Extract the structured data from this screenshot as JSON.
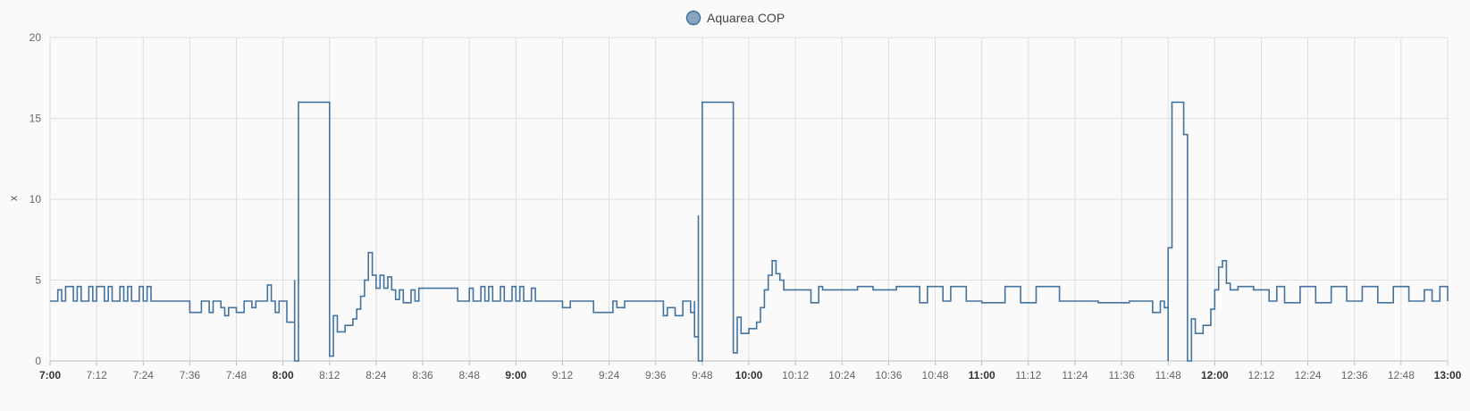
{
  "chart_data": {
    "type": "line",
    "ylabel": "x",
    "ylim": [
      0,
      20
    ],
    "y_ticks": [
      0,
      5,
      10,
      15,
      20
    ],
    "x_range": [
      "7:00",
      "13:00"
    ],
    "x_ticks": [
      {
        "label": "7:00",
        "major": true
      },
      {
        "label": "7:12",
        "major": false
      },
      {
        "label": "7:24",
        "major": false
      },
      {
        "label": "7:36",
        "major": false
      },
      {
        "label": "7:48",
        "major": false
      },
      {
        "label": "8:00",
        "major": true
      },
      {
        "label": "8:12",
        "major": false
      },
      {
        "label": "8:24",
        "major": false
      },
      {
        "label": "8:36",
        "major": false
      },
      {
        "label": "8:48",
        "major": false
      },
      {
        "label": "9:00",
        "major": true
      },
      {
        "label": "9:12",
        "major": false
      },
      {
        "label": "9:24",
        "major": false
      },
      {
        "label": "9:36",
        "major": false
      },
      {
        "label": "9:48",
        "major": false
      },
      {
        "label": "10:00",
        "major": true
      },
      {
        "label": "10:12",
        "major": false
      },
      {
        "label": "10:24",
        "major": false
      },
      {
        "label": "10:36",
        "major": false
      },
      {
        "label": "10:48",
        "major": false
      },
      {
        "label": "11:00",
        "major": true
      },
      {
        "label": "11:12",
        "major": false
      },
      {
        "label": "11:24",
        "major": false
      },
      {
        "label": "11:36",
        "major": false
      },
      {
        "label": "11:48",
        "major": true
      },
      {
        "label": "12:00",
        "major": true
      },
      {
        "label": "12:12",
        "major": false
      },
      {
        "label": "12:24",
        "major": false
      },
      {
        "label": "12:36",
        "major": false
      },
      {
        "label": "12:48",
        "major": false
      },
      {
        "label": "13:00",
        "major": true
      }
    ],
    "grid": true,
    "legend_position": "top-center",
    "series": [
      {
        "name": "Aquarea COP",
        "color": "#44739e",
        "step": true,
        "points": [
          [
            "7:00",
            3.7
          ],
          [
            "7:02",
            4.4
          ],
          [
            "7:03",
            3.7
          ],
          [
            "7:04",
            4.6
          ],
          [
            "7:06",
            3.7
          ],
          [
            "7:07",
            4.6
          ],
          [
            "7:08",
            3.7
          ],
          [
            "7:10",
            4.6
          ],
          [
            "7:11",
            3.7
          ],
          [
            "7:12",
            4.6
          ],
          [
            "7:14",
            3.7
          ],
          [
            "7:15",
            4.6
          ],
          [
            "7:16",
            3.7
          ],
          [
            "7:18",
            4.6
          ],
          [
            "7:19",
            3.7
          ],
          [
            "7:20",
            4.6
          ],
          [
            "7:21",
            3.7
          ],
          [
            "7:23",
            4.6
          ],
          [
            "7:24",
            3.7
          ],
          [
            "7:25",
            4.6
          ],
          [
            "7:26",
            3.7
          ],
          [
            "7:36",
            3.0
          ],
          [
            "7:39",
            3.7
          ],
          [
            "7:41",
            3.0
          ],
          [
            "7:42",
            3.7
          ],
          [
            "7:44",
            3.3
          ],
          [
            "7:45",
            2.8
          ],
          [
            "7:46",
            3.3
          ],
          [
            "7:48",
            3.0
          ],
          [
            "7:50",
            3.7
          ],
          [
            "7:52",
            3.3
          ],
          [
            "7:53",
            3.7
          ],
          [
            "7:56",
            4.7
          ],
          [
            "7:57",
            3.7
          ],
          [
            "7:58",
            3.0
          ],
          [
            "7:59",
            3.7
          ],
          [
            "8:01",
            2.4
          ],
          [
            "8:03",
            5.0
          ],
          [
            "8:03",
            0.0
          ],
          [
            "8:04",
            10.0
          ],
          [
            "8:04",
            16.0
          ],
          [
            "8:12",
            16.0
          ],
          [
            "8:12",
            0.3
          ],
          [
            "8:13",
            2.8
          ],
          [
            "8:14",
            1.8
          ],
          [
            "8:16",
            2.2
          ],
          [
            "8:18",
            2.6
          ],
          [
            "8:19",
            3.2
          ],
          [
            "8:20",
            4.0
          ],
          [
            "8:21",
            5.0
          ],
          [
            "8:22",
            6.7
          ],
          [
            "8:23",
            5.3
          ],
          [
            "8:24",
            4.5
          ],
          [
            "8:25",
            5.3
          ],
          [
            "8:26",
            4.5
          ],
          [
            "8:27",
            5.2
          ],
          [
            "8:28",
            4.4
          ],
          [
            "8:29",
            3.8
          ],
          [
            "8:30",
            4.4
          ],
          [
            "8:31",
            3.6
          ],
          [
            "8:33",
            4.4
          ],
          [
            "8:34",
            3.7
          ],
          [
            "8:35",
            4.5
          ],
          [
            "8:45",
            3.7
          ],
          [
            "8:48",
            4.5
          ],
          [
            "8:49",
            3.7
          ],
          [
            "8:51",
            4.6
          ],
          [
            "8:52",
            3.7
          ],
          [
            "8:53",
            4.6
          ],
          [
            "8:54",
            3.7
          ],
          [
            "8:56",
            4.6
          ],
          [
            "8:57",
            3.7
          ],
          [
            "8:59",
            4.6
          ],
          [
            "9:00",
            3.7
          ],
          [
            "9:01",
            4.6
          ],
          [
            "9:02",
            3.7
          ],
          [
            "9:04",
            4.5
          ],
          [
            "9:05",
            3.7
          ],
          [
            "9:12",
            3.3
          ],
          [
            "9:14",
            3.7
          ],
          [
            "9:20",
            3.0
          ],
          [
            "9:25",
            3.7
          ],
          [
            "9:26",
            3.3
          ],
          [
            "9:28",
            3.7
          ],
          [
            "9:38",
            2.8
          ],
          [
            "9:39",
            3.3
          ],
          [
            "9:41",
            2.8
          ],
          [
            "9:43",
            3.7
          ],
          [
            "9:45",
            3.0
          ],
          [
            "9:46",
            3.7
          ],
          [
            "9:46",
            1.5
          ],
          [
            "9:47",
            3.3
          ],
          [
            "9:47",
            9.0
          ],
          [
            "9:47",
            0.0
          ],
          [
            "9:48",
            9.5
          ],
          [
            "9:48",
            16.0
          ],
          [
            "9:56",
            16.0
          ],
          [
            "9:56",
            0.5
          ],
          [
            "9:57",
            2.7
          ],
          [
            "9:58",
            1.7
          ],
          [
            "10:00",
            2.0
          ],
          [
            "10:02",
            2.4
          ],
          [
            "10:03",
            3.3
          ],
          [
            "10:04",
            4.4
          ],
          [
            "10:05",
            5.3
          ],
          [
            "10:06",
            6.2
          ],
          [
            "10:07",
            5.4
          ],
          [
            "10:08",
            5.0
          ],
          [
            "10:09",
            4.4
          ],
          [
            "10:16",
            3.6
          ],
          [
            "10:18",
            4.6
          ],
          [
            "10:19",
            4.4
          ],
          [
            "10:28",
            4.6
          ],
          [
            "10:32",
            4.4
          ],
          [
            "10:38",
            4.6
          ],
          [
            "10:44",
            3.6
          ],
          [
            "10:46",
            4.6
          ],
          [
            "10:50",
            3.7
          ],
          [
            "10:52",
            4.6
          ],
          [
            "10:56",
            3.7
          ],
          [
            "11:00",
            3.6
          ],
          [
            "11:06",
            4.6
          ],
          [
            "11:10",
            3.6
          ],
          [
            "11:14",
            4.6
          ],
          [
            "11:20",
            3.7
          ],
          [
            "11:30",
            3.6
          ],
          [
            "11:38",
            3.7
          ],
          [
            "11:44",
            3.0
          ],
          [
            "11:46",
            3.7
          ],
          [
            "11:47",
            3.3
          ],
          [
            "11:48",
            0.0
          ],
          [
            "11:48",
            7.0
          ],
          [
            "11:49",
            12.0
          ],
          [
            "11:49",
            16.0
          ],
          [
            "11:52",
            16.0
          ],
          [
            "11:52",
            14.0
          ],
          [
            "11:53",
            9.0
          ],
          [
            "11:53",
            0.0
          ],
          [
            "11:54",
            2.6
          ],
          [
            "11:55",
            1.7
          ],
          [
            "11:57",
            2.2
          ],
          [
            "11:59",
            3.2
          ],
          [
            "12:00",
            4.4
          ],
          [
            "12:01",
            5.8
          ],
          [
            "12:02",
            6.2
          ],
          [
            "12:03",
            4.8
          ],
          [
            "12:04",
            4.4
          ],
          [
            "12:06",
            4.6
          ],
          [
            "12:10",
            4.4
          ],
          [
            "12:14",
            3.7
          ],
          [
            "12:16",
            4.6
          ],
          [
            "12:18",
            3.6
          ],
          [
            "12:22",
            4.6
          ],
          [
            "12:26",
            3.6
          ],
          [
            "12:30",
            4.6
          ],
          [
            "12:34",
            3.7
          ],
          [
            "12:38",
            4.6
          ],
          [
            "12:42",
            3.6
          ],
          [
            "12:46",
            4.6
          ],
          [
            "12:50",
            3.7
          ],
          [
            "12:54",
            4.4
          ],
          [
            "12:56",
            3.7
          ],
          [
            "12:58",
            4.6
          ],
          [
            "13:00",
            3.7
          ]
        ]
      }
    ]
  }
}
